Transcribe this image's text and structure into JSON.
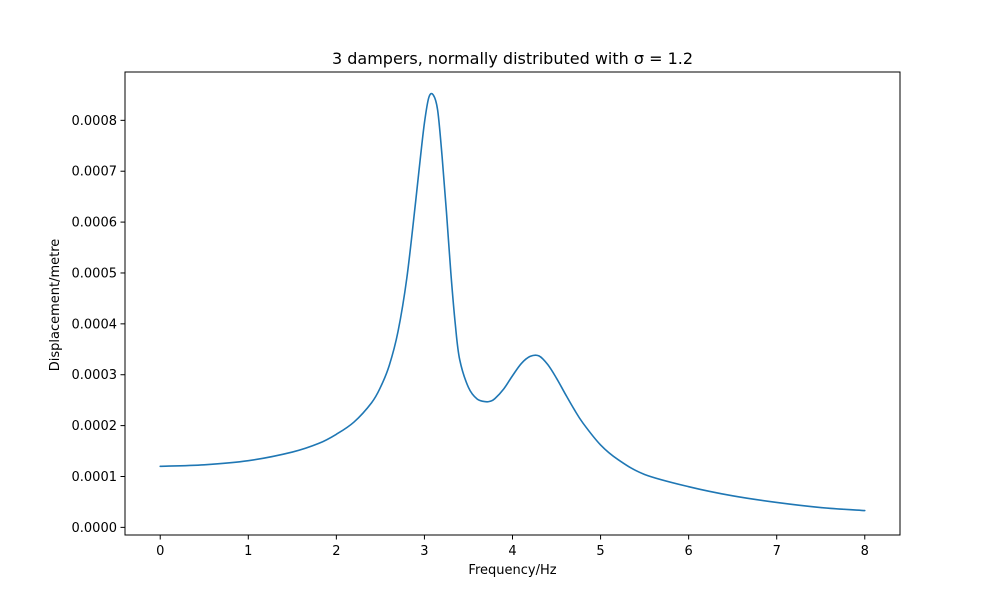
{
  "chart_data": {
    "type": "line",
    "title": "3 dampers, normally distributed with σ = 1.2",
    "xlabel": "Frequency/Hz",
    "ylabel": "Displacement/metre",
    "xlim": [
      -0.4,
      8.4
    ],
    "ylim": [
      -1.5e-05,
      0.000895
    ],
    "xticks": [
      0,
      1,
      2,
      3,
      4,
      5,
      6,
      7,
      8
    ],
    "xtick_labels": [
      "0",
      "1",
      "2",
      "3",
      "4",
      "5",
      "6",
      "7",
      "8"
    ],
    "yticks": [
      0,
      0.0001,
      0.0002,
      0.0003,
      0.0004,
      0.0005,
      0.0006,
      0.0007,
      0.0008
    ],
    "ytick_labels": [
      "0.0000",
      "0.0001",
      "0.0002",
      "0.0003",
      "0.0004",
      "0.0005",
      "0.0006",
      "0.0007",
      "0.0008"
    ],
    "grid": false,
    "series": [
      {
        "color": "#1f77b4",
        "x": [
          0,
          0.5,
          1.0,
          1.5,
          1.8,
          2.0,
          2.2,
          2.4,
          2.5,
          2.6,
          2.7,
          2.8,
          2.9,
          2.95,
          3.0,
          3.05,
          3.1,
          3.15,
          3.2,
          3.25,
          3.3,
          3.35,
          3.4,
          3.5,
          3.6,
          3.7,
          3.75,
          3.8,
          3.9,
          4.0,
          4.1,
          4.2,
          4.3,
          4.4,
          4.5,
          4.6,
          4.7,
          4.8,
          5.0,
          5.2,
          5.5,
          6.0,
          6.5,
          7.0,
          7.5,
          8.0
        ],
        "y": [
          0.00012,
          0.000123,
          0.000131,
          0.000148,
          0.000165,
          0.000183,
          0.000207,
          0.000245,
          0.000275,
          0.000318,
          0.000385,
          0.00049,
          0.00064,
          0.00072,
          0.000795,
          0.000845,
          0.00085,
          0.00082,
          0.00073,
          0.00062,
          0.0005,
          0.0004,
          0.00033,
          0.000275,
          0.000252,
          0.000247,
          0.000248,
          0.000253,
          0.000272,
          0.000298,
          0.000322,
          0.000336,
          0.000337,
          0.00032,
          0.000293,
          0.000262,
          0.000232,
          0.000205,
          0.000162,
          0.000133,
          0.000104,
          8e-05,
          6.2e-05,
          4.9e-05,
          3.9e-05,
          3.3e-05
        ]
      }
    ]
  }
}
